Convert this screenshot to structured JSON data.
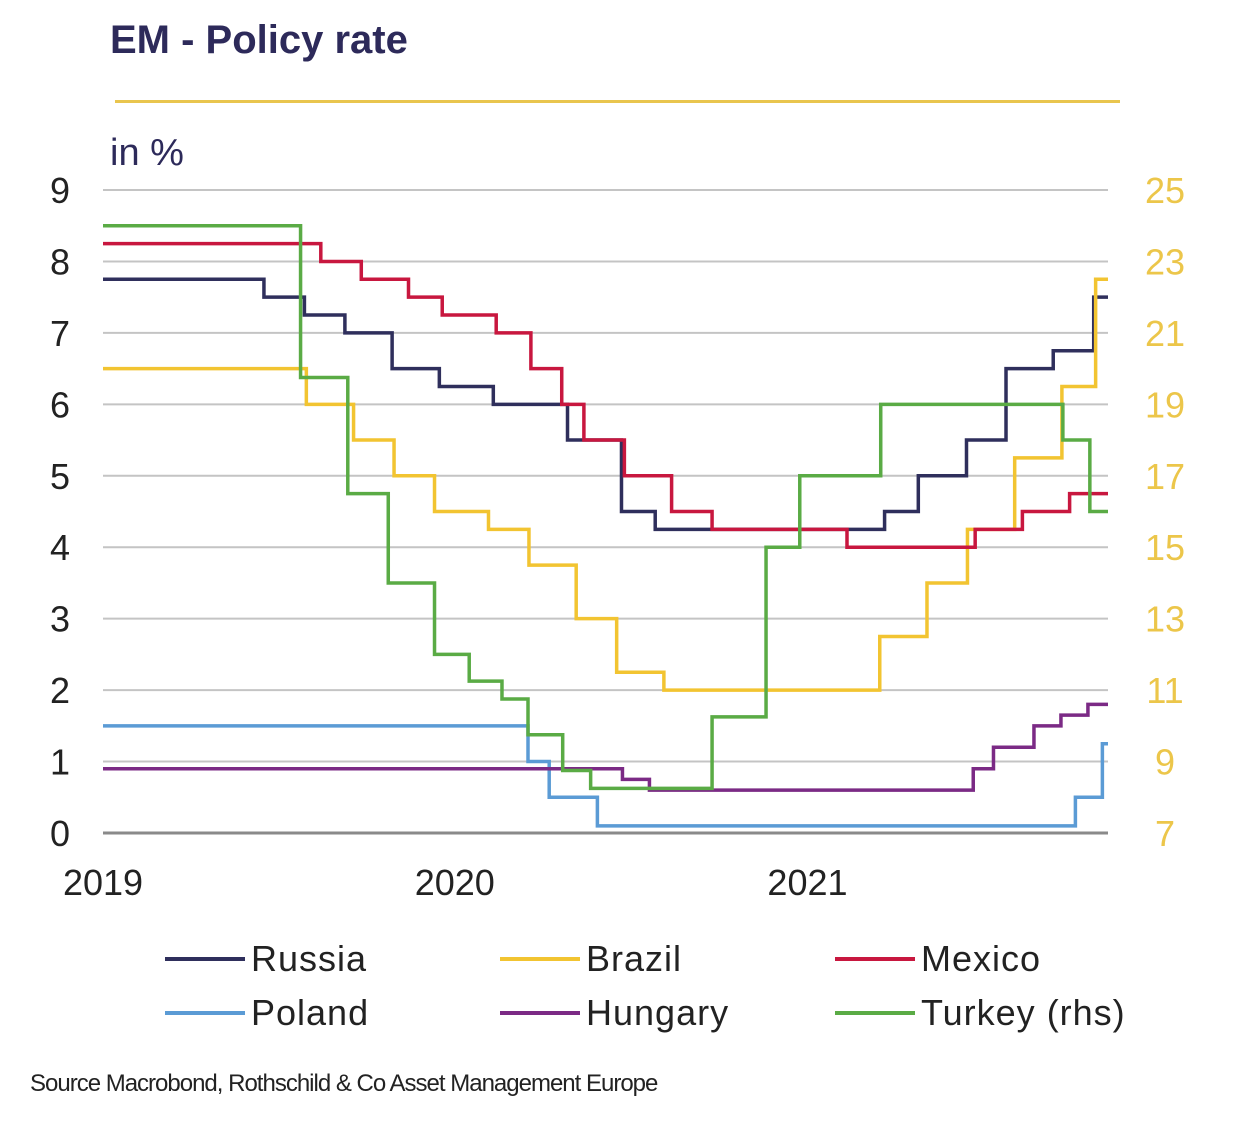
{
  "title": "EM - Policy rate",
  "unit": "in %",
  "source": "Source Macrobond, Rothschild & Co Asset Management Europe",
  "chart_data": {
    "type": "line",
    "step": true,
    "title": "EM - Policy rate",
    "ylabel": "in %",
    "x_range": [
      "2019-01-01",
      "2021-11-10"
    ],
    "x_ticks": [
      "2019",
      "2020",
      "2021"
    ],
    "y_left": {
      "range": [
        0,
        9
      ],
      "ticks": [
        0,
        1,
        2,
        3,
        4,
        5,
        6,
        7,
        8,
        9
      ]
    },
    "y_right": {
      "range": [
        7,
        25
      ],
      "ticks": [
        7,
        9,
        11,
        13,
        15,
        17,
        19,
        21,
        23,
        25
      ]
    },
    "grid": true,
    "legend_position": "bottom",
    "series": [
      {
        "name": "Russia",
        "axis": "left",
        "color": "#2f2f5c",
        "points": [
          [
            "2019-01-01",
            7.75
          ],
          [
            "2019-06-17",
            7.5
          ],
          [
            "2019-07-29",
            7.25
          ],
          [
            "2019-09-09",
            7.0
          ],
          [
            "2019-10-28",
            6.5
          ],
          [
            "2019-12-16",
            6.25
          ],
          [
            "2020-02-10",
            6.0
          ],
          [
            "2020-04-27",
            5.5
          ],
          [
            "2020-06-22",
            4.5
          ],
          [
            "2020-07-27",
            4.25
          ],
          [
            "2021-03-22",
            4.5
          ],
          [
            "2021-04-26",
            5.0
          ],
          [
            "2021-06-15",
            5.5
          ],
          [
            "2021-07-26",
            6.5
          ],
          [
            "2021-09-13",
            6.75
          ],
          [
            "2021-10-25",
            7.5
          ]
        ]
      },
      {
        "name": "Brazil",
        "axis": "left",
        "color": "#f2c431",
        "points": [
          [
            "2019-01-01",
            6.5
          ],
          [
            "2019-07-31",
            6.0
          ],
          [
            "2019-09-18",
            5.5
          ],
          [
            "2019-10-30",
            5.0
          ],
          [
            "2019-12-11",
            4.5
          ],
          [
            "2020-02-05",
            4.25
          ],
          [
            "2020-03-18",
            3.75
          ],
          [
            "2020-05-06",
            3.0
          ],
          [
            "2020-06-17",
            2.25
          ],
          [
            "2020-08-05",
            2.0
          ],
          [
            "2021-03-17",
            2.75
          ],
          [
            "2021-05-05",
            3.5
          ],
          [
            "2021-06-16",
            4.25
          ],
          [
            "2021-08-04",
            5.25
          ],
          [
            "2021-09-22",
            6.25
          ],
          [
            "2021-10-27",
            7.75
          ]
        ]
      },
      {
        "name": "Mexico",
        "axis": "left",
        "color": "#c8173f",
        "points": [
          [
            "2019-01-01",
            8.25
          ],
          [
            "2019-08-15",
            8.0
          ],
          [
            "2019-09-26",
            7.75
          ],
          [
            "2019-11-14",
            7.5
          ],
          [
            "2019-12-19",
            7.25
          ],
          [
            "2020-02-13",
            7.0
          ],
          [
            "2020-03-20",
            6.5
          ],
          [
            "2020-04-21",
            6.0
          ],
          [
            "2020-05-14",
            5.5
          ],
          [
            "2020-06-25",
            5.0
          ],
          [
            "2020-08-13",
            4.5
          ],
          [
            "2020-09-24",
            4.25
          ],
          [
            "2021-02-11",
            4.0
          ],
          [
            "2021-06-24",
            4.25
          ],
          [
            "2021-08-12",
            4.5
          ],
          [
            "2021-09-30",
            4.75
          ]
        ]
      },
      {
        "name": "Poland",
        "axis": "left",
        "color": "#5b9bd5",
        "points": [
          [
            "2019-01-01",
            1.5
          ],
          [
            "2020-03-17",
            1.0
          ],
          [
            "2020-04-08",
            0.5
          ],
          [
            "2020-05-28",
            0.1
          ],
          [
            "2021-10-06",
            0.5
          ],
          [
            "2021-11-03",
            1.25
          ]
        ]
      },
      {
        "name": "Hungary",
        "axis": "left",
        "color": "#7b2a85",
        "points": [
          [
            "2019-01-01",
            0.9
          ],
          [
            "2020-06-23",
            0.75
          ],
          [
            "2020-07-21",
            0.6
          ],
          [
            "2021-06-22",
            0.9
          ],
          [
            "2021-07-13",
            1.2
          ],
          [
            "2021-08-24",
            1.5
          ],
          [
            "2021-09-21",
            1.65
          ],
          [
            "2021-10-19",
            1.8
          ]
        ]
      },
      {
        "name": "Turkey (rhs)",
        "axis": "right",
        "color": "#5aab45",
        "points": [
          [
            "2019-01-01",
            24.0
          ],
          [
            "2019-07-25",
            19.75
          ],
          [
            "2019-09-12",
            16.5
          ],
          [
            "2019-10-24",
            14.0
          ],
          [
            "2019-12-11",
            12.0
          ],
          [
            "2020-01-16",
            11.25
          ],
          [
            "2020-02-19",
            10.75
          ],
          [
            "2020-03-17",
            9.75
          ],
          [
            "2020-04-22",
            8.75
          ],
          [
            "2020-05-21",
            8.25
          ],
          [
            "2020-09-24",
            10.25
          ],
          [
            "2020-11-19",
            15.0
          ],
          [
            "2020-12-24",
            17.0
          ],
          [
            "2021-03-18",
            19.0
          ],
          [
            "2021-09-23",
            18.0
          ],
          [
            "2021-10-21",
            16.0
          ]
        ]
      }
    ]
  }
}
